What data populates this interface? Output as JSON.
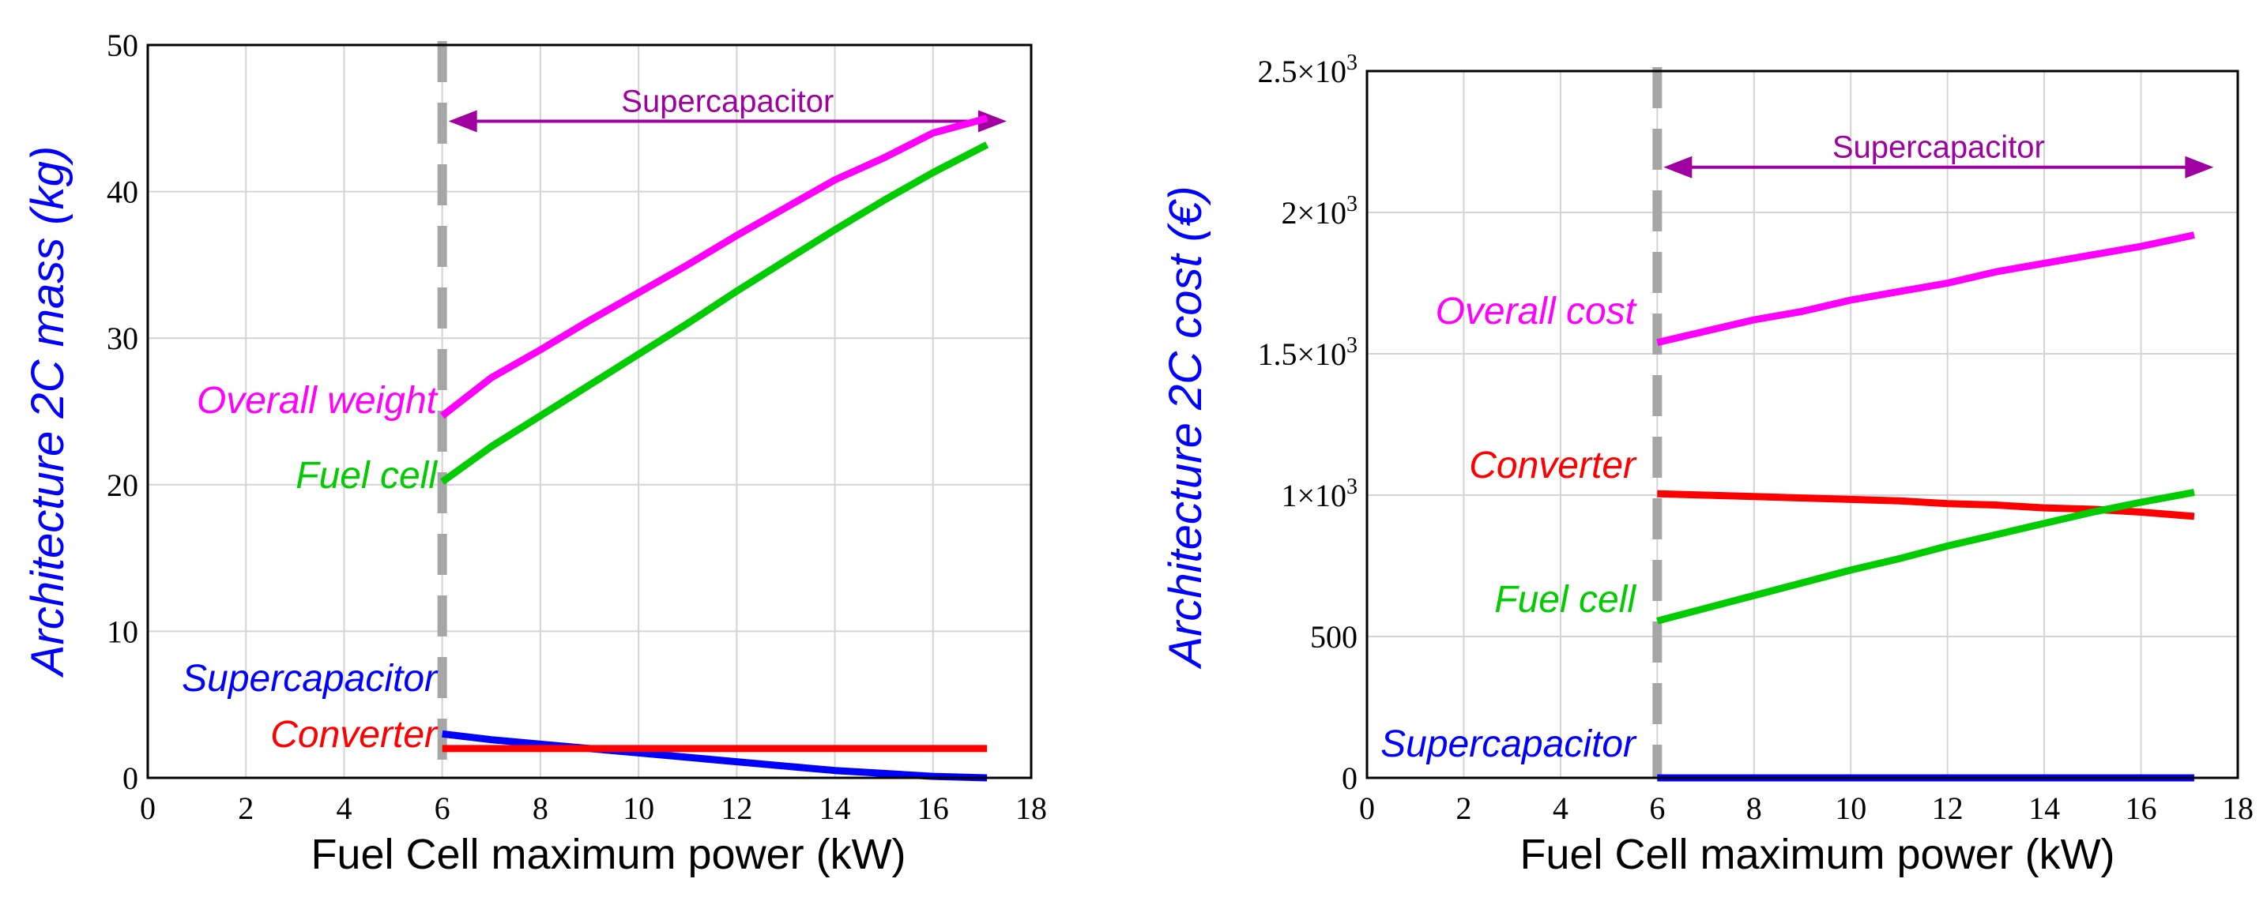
{
  "chart_data": [
    {
      "type": "line",
      "ylabel": "Architecture 2C mass (kg)",
      "xlabel": "Fuel Cell maximum power (kW)",
      "xlim": [
        0,
        18
      ],
      "ylim": [
        0,
        50
      ],
      "xticks": [
        "0",
        "2",
        "4",
        "6",
        "8",
        "10",
        "12",
        "14",
        "16",
        "18"
      ],
      "yticks": [
        "0",
        "10",
        "20",
        "30",
        "40",
        "50"
      ],
      "grid": true,
      "divider_x": 6,
      "annotation": {
        "text": "Supercapacitor",
        "x_from": 6,
        "x_to": 17.5,
        "y": 44.8,
        "color": "#a000a0"
      },
      "series": [
        {
          "name": "Overall weight",
          "color": "#ff00ff",
          "x": [
            6,
            7,
            8,
            9,
            10,
            11,
            12,
            13,
            14,
            15,
            16,
            17.1
          ],
          "y": [
            24.7,
            27.3,
            29.2,
            31.2,
            33.1,
            35.0,
            37.0,
            38.9,
            40.8,
            42.3,
            44.0,
            45.0
          ]
        },
        {
          "name": "Fuel cell",
          "color": "#00cc00",
          "x": [
            6,
            7,
            8,
            9,
            10,
            11,
            12,
            13,
            14,
            15,
            16,
            17.1
          ],
          "y": [
            20.2,
            22.6,
            24.7,
            26.8,
            28.9,
            31.0,
            33.2,
            35.3,
            37.4,
            39.4,
            41.3,
            43.2
          ]
        },
        {
          "name": "Supercapacitor",
          "color": "#0000ff",
          "x": [
            6,
            7,
            8,
            9,
            10,
            11,
            12,
            13,
            14,
            15,
            16,
            17.1
          ],
          "y": [
            3.0,
            2.6,
            2.3,
            2.0,
            1.7,
            1.4,
            1.1,
            0.8,
            0.5,
            0.3,
            0.1,
            0.0
          ]
        },
        {
          "name": "Converter",
          "color": "#ff0000",
          "x": [
            6,
            17.1
          ],
          "y": [
            2.0,
            2.0
          ]
        }
      ]
    },
    {
      "type": "line",
      "ylabel": "Architecture 2C cost (€)",
      "xlabel": "Fuel Cell maximum power (kW)",
      "xlim": [
        0,
        18
      ],
      "ylim": [
        0,
        2500
      ],
      "xticks": [
        "0",
        "2",
        "4",
        "6",
        "8",
        "10",
        "12",
        "14",
        "16",
        "18"
      ],
      "yticks": [
        "0",
        "500",
        "1×10³",
        "1.5×10³",
        "2×10³",
        "2.5×10³"
      ],
      "grid": true,
      "divider_x": 6,
      "annotation": {
        "text": "Supercapacitor",
        "x_from": 6,
        "x_to": 17.5,
        "y": 2160,
        "color": "#a000a0"
      },
      "series": [
        {
          "name": "Overall cost",
          "color": "#ff00ff",
          "x": [
            6,
            7,
            8,
            9,
            10,
            11,
            12,
            13,
            14,
            15,
            16,
            17.1
          ],
          "y": [
            1540,
            1580,
            1620,
            1650,
            1690,
            1720,
            1750,
            1790,
            1820,
            1850,
            1880,
            1920
          ]
        },
        {
          "name": "Converter",
          "color": "#ff0000",
          "x": [
            6,
            7,
            8,
            9,
            10,
            11,
            12,
            13,
            14,
            15,
            16,
            17.1
          ],
          "y": [
            1005,
            1000,
            995,
            990,
            985,
            980,
            970,
            965,
            955,
            950,
            940,
            925
          ]
        },
        {
          "name": "Fuel cell",
          "color": "#00cc00",
          "x": [
            6,
            7,
            8,
            9,
            10,
            11,
            12,
            13,
            14,
            15,
            16,
            17.1
          ],
          "y": [
            555,
            600,
            645,
            690,
            735,
            775,
            820,
            860,
            900,
            940,
            975,
            1010
          ]
        },
        {
          "name": "Supercapacitor",
          "color": "#0000ff",
          "x": [
            6,
            17.1
          ],
          "y": [
            0,
            0
          ]
        }
      ]
    }
  ]
}
